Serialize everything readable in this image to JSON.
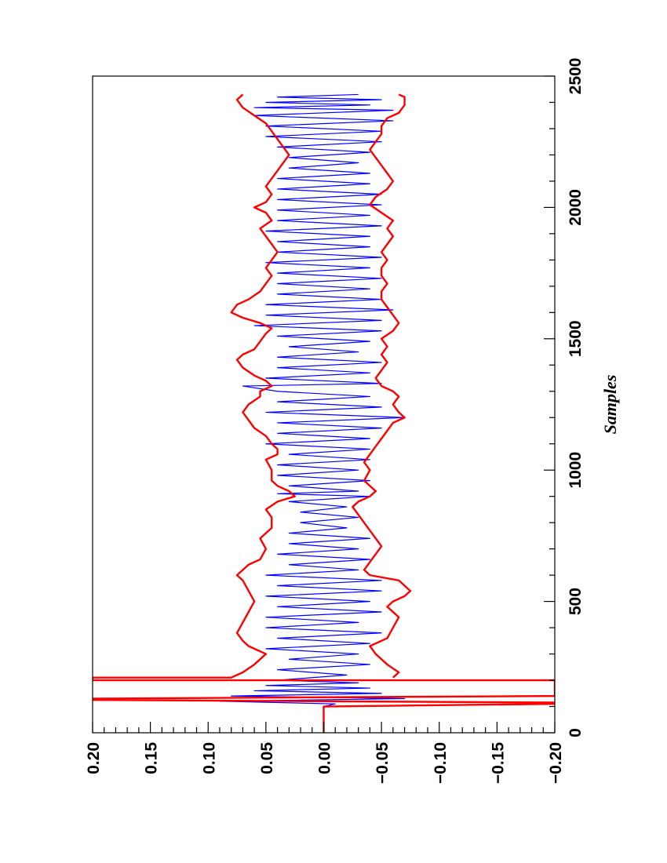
{
  "chart_data": {
    "type": "line",
    "title": "",
    "xlabel": "Samples",
    "ylabel": "",
    "xlim": [
      0,
      2500
    ],
    "ylim": [
      -0.2,
      0.2
    ],
    "x_ticks": [
      0,
      500,
      1000,
      1500,
      2000,
      2500
    ],
    "y_ticks": [
      -0.2,
      -0.15,
      -0.1,
      -0.05,
      0.0,
      0.05,
      0.1,
      0.15,
      0.2
    ],
    "x_tick_labels": [
      "0",
      "500",
      "1000",
      "1500",
      "2000",
      "2500"
    ],
    "y_tick_labels": [
      "−0.20",
      "−0.15",
      "−0.10",
      "−0.05",
      "0.00",
      "0.05",
      "0.10",
      "0.15",
      "0.20"
    ],
    "orientation": "rotated 90° counter-clockwise",
    "grid": false,
    "legend": "none",
    "series": [
      {
        "role": "signal",
        "color": "#0000ff",
        "description_values": "noisy signal, amplitude about ±0.04 to ±0.06",
        "samples": [
          [
            0,
            0
          ],
          [
            100,
            0
          ],
          [
            110,
            -0.01
          ],
          [
            120,
            0.09
          ],
          [
            130,
            -0.07
          ],
          [
            140,
            0.08
          ],
          [
            150,
            -0.05
          ],
          [
            160,
            0.06
          ],
          [
            170,
            -0.04
          ],
          [
            180,
            0.05
          ],
          [
            190,
            -0.03
          ],
          [
            200,
            0.04
          ],
          [
            220,
            -0.02
          ],
          [
            240,
            0.04
          ],
          [
            260,
            -0.04
          ],
          [
            280,
            0.03
          ],
          [
            300,
            -0.03
          ],
          [
            320,
            0.05
          ],
          [
            340,
            -0.04
          ],
          [
            360,
            0.04
          ],
          [
            380,
            -0.05
          ],
          [
            400,
            0.05
          ],
          [
            420,
            -0.03
          ],
          [
            440,
            0.05
          ],
          [
            460,
            -0.05
          ],
          [
            480,
            0.04
          ],
          [
            500,
            -0.04
          ],
          [
            520,
            0.05
          ],
          [
            540,
            -0.05
          ],
          [
            560,
            0.04
          ],
          [
            580,
            -0.05
          ],
          [
            600,
            0.05
          ],
          [
            620,
            -0.03
          ],
          [
            640,
            0.03
          ],
          [
            660,
            -0.04
          ],
          [
            680,
            0.04
          ],
          [
            700,
            -0.03
          ],
          [
            720,
            0.03
          ],
          [
            740,
            -0.04
          ],
          [
            760,
            0.03
          ],
          [
            780,
            -0.02
          ],
          [
            800,
            0.02
          ],
          [
            820,
            -0.03
          ],
          [
            840,
            0.02
          ],
          [
            860,
            -0.02
          ],
          [
            880,
            0.03
          ],
          [
            900,
            -0.04
          ],
          [
            910,
            0.04
          ],
          [
            920,
            -0.03
          ],
          [
            940,
            0.03
          ],
          [
            960,
            -0.04
          ],
          [
            980,
            0.04
          ],
          [
            1000,
            -0.03
          ],
          [
            1020,
            0.04
          ],
          [
            1040,
            -0.04
          ],
          [
            1060,
            0.03
          ],
          [
            1080,
            -0.04
          ],
          [
            1100,
            0.05
          ],
          [
            1120,
            -0.04
          ],
          [
            1140,
            0.04
          ],
          [
            1160,
            -0.05
          ],
          [
            1180,
            0.04
          ],
          [
            1200,
            -0.07
          ],
          [
            1220,
            0.05
          ],
          [
            1240,
            -0.05
          ],
          [
            1260,
            0.04
          ],
          [
            1280,
            -0.04
          ],
          [
            1300,
            0.04
          ],
          [
            1320,
            0.07
          ],
          [
            1330,
            -0.05
          ],
          [
            1350,
            0.05
          ],
          [
            1370,
            -0.04
          ],
          [
            1390,
            0.04
          ],
          [
            1410,
            -0.05
          ],
          [
            1430,
            0.04
          ],
          [
            1450,
            -0.03
          ],
          [
            1470,
            0.03
          ],
          [
            1490,
            -0.04
          ],
          [
            1510,
            0.04
          ],
          [
            1530,
            -0.05
          ],
          [
            1550,
            0.06
          ],
          [
            1570,
            -0.05
          ],
          [
            1590,
            0.05
          ],
          [
            1610,
            -0.06
          ],
          [
            1630,
            0.05
          ],
          [
            1650,
            -0.05
          ],
          [
            1670,
            0.04
          ],
          [
            1690,
            -0.04
          ],
          [
            1710,
            0.04
          ],
          [
            1730,
            -0.05
          ],
          [
            1750,
            0.04
          ],
          [
            1770,
            -0.04
          ],
          [
            1790,
            0.05
          ],
          [
            1810,
            -0.05
          ],
          [
            1830,
            0.04
          ],
          [
            1850,
            -0.04
          ],
          [
            1870,
            0.04
          ],
          [
            1890,
            -0.04
          ],
          [
            1910,
            0.05
          ],
          [
            1930,
            -0.05
          ],
          [
            1950,
            0.04
          ],
          [
            1970,
            -0.04
          ],
          [
            1990,
            0.04
          ],
          [
            2010,
            -0.05
          ],
          [
            2030,
            0.04
          ],
          [
            2050,
            -0.05
          ],
          [
            2070,
            0.04
          ],
          [
            2090,
            -0.04
          ],
          [
            2110,
            0.04
          ],
          [
            2130,
            -0.04
          ],
          [
            2150,
            0.03
          ],
          [
            2170,
            -0.03
          ],
          [
            2190,
            0.03
          ],
          [
            2210,
            -0.04
          ],
          [
            2230,
            0.04
          ],
          [
            2250,
            -0.05
          ],
          [
            2270,
            0.05
          ],
          [
            2290,
            -0.05
          ],
          [
            2310,
            0.05
          ],
          [
            2330,
            -0.06
          ],
          [
            2350,
            0.06
          ],
          [
            2370,
            -0.06
          ],
          [
            2380,
            0.06
          ],
          [
            2390,
            -0.04
          ],
          [
            2400,
            0.05
          ],
          [
            2410,
            -0.05
          ],
          [
            2420,
            0.04
          ],
          [
            2430,
            -0.03
          ]
        ]
      },
      {
        "role": "upper envelope",
        "color": "#ff0000",
        "description_values": "upper bound, roughly 0.03 to 0.08",
        "samples": [
          [
            0,
            0
          ],
          [
            100,
            0
          ],
          [
            110,
            -0.2
          ],
          [
            115,
            -0.2
          ],
          [
            125,
            0.2
          ],
          [
            130,
            0.2
          ],
          [
            140,
            -0.2
          ],
          [
            200,
            -0.2
          ],
          [
            200,
            0.2
          ],
          [
            210,
            0.2
          ],
          [
            210,
            0.08
          ],
          [
            230,
            0.07
          ],
          [
            260,
            0.06
          ],
          [
            300,
            0.05
          ],
          [
            330,
            0.065
          ],
          [
            350,
            0.07
          ],
          [
            380,
            0.075
          ],
          [
            420,
            0.07
          ],
          [
            460,
            0.065
          ],
          [
            500,
            0.06
          ],
          [
            540,
            0.065
          ],
          [
            580,
            0.07
          ],
          [
            600,
            0.075
          ],
          [
            620,
            0.07
          ],
          [
            640,
            0.065
          ],
          [
            660,
            0.055
          ],
          [
            700,
            0.05
          ],
          [
            740,
            0.055
          ],
          [
            780,
            0.045
          ],
          [
            820,
            0.045
          ],
          [
            850,
            0.05
          ],
          [
            880,
            0.04
          ],
          [
            900,
            0.025
          ],
          [
            920,
            0.03
          ],
          [
            940,
            0.04
          ],
          [
            960,
            0.045
          ],
          [
            1000,
            0.045
          ],
          [
            1040,
            0.05
          ],
          [
            1060,
            0.04
          ],
          [
            1080,
            0.04
          ],
          [
            1100,
            0.045
          ],
          [
            1130,
            0.05
          ],
          [
            1160,
            0.06
          ],
          [
            1190,
            0.065
          ],
          [
            1220,
            0.07
          ],
          [
            1250,
            0.065
          ],
          [
            1280,
            0.055
          ],
          [
            1300,
            0.055
          ],
          [
            1320,
            0.045
          ],
          [
            1340,
            0.05
          ],
          [
            1360,
            0.06
          ],
          [
            1390,
            0.07
          ],
          [
            1420,
            0.075
          ],
          [
            1440,
            0.07
          ],
          [
            1460,
            0.06
          ],
          [
            1490,
            0.055
          ],
          [
            1520,
            0.05
          ],
          [
            1540,
            0.045
          ],
          [
            1560,
            0.055
          ],
          [
            1580,
            0.07
          ],
          [
            1600,
            0.08
          ],
          [
            1630,
            0.075
          ],
          [
            1650,
            0.065
          ],
          [
            1680,
            0.055
          ],
          [
            1710,
            0.05
          ],
          [
            1740,
            0.045
          ],
          [
            1770,
            0.05
          ],
          [
            1800,
            0.045
          ],
          [
            1830,
            0.04
          ],
          [
            1860,
            0.045
          ],
          [
            1890,
            0.05
          ],
          [
            1920,
            0.055
          ],
          [
            1950,
            0.045
          ],
          [
            1980,
            0.05
          ],
          [
            2000,
            0.06
          ],
          [
            2020,
            0.05
          ],
          [
            2050,
            0.045
          ],
          [
            2080,
            0.05
          ],
          [
            2110,
            0.045
          ],
          [
            2140,
            0.04
          ],
          [
            2170,
            0.035
          ],
          [
            2200,
            0.03
          ],
          [
            2230,
            0.035
          ],
          [
            2260,
            0.04
          ],
          [
            2290,
            0.045
          ],
          [
            2320,
            0.05
          ],
          [
            2350,
            0.06
          ],
          [
            2380,
            0.07
          ],
          [
            2410,
            0.075
          ],
          [
            2430,
            0.07
          ]
        ]
      },
      {
        "role": "lower envelope",
        "color": "#ff0000",
        "description_values": "lower bound, roughly -0.02 to -0.075",
        "samples": [
          [
            210,
            -0.06
          ],
          [
            230,
            -0.065
          ],
          [
            260,
            -0.055
          ],
          [
            300,
            -0.045
          ],
          [
            330,
            -0.04
          ],
          [
            360,
            -0.055
          ],
          [
            400,
            -0.06
          ],
          [
            440,
            -0.065
          ],
          [
            480,
            -0.055
          ],
          [
            500,
            -0.06
          ],
          [
            520,
            -0.07
          ],
          [
            540,
            -0.075
          ],
          [
            560,
            -0.07
          ],
          [
            580,
            -0.065
          ],
          [
            600,
            -0.04
          ],
          [
            620,
            -0.035
          ],
          [
            650,
            -0.04
          ],
          [
            680,
            -0.045
          ],
          [
            710,
            -0.05
          ],
          [
            740,
            -0.045
          ],
          [
            770,
            -0.04
          ],
          [
            800,
            -0.035
          ],
          [
            830,
            -0.03
          ],
          [
            860,
            -0.025
          ],
          [
            880,
            -0.03
          ],
          [
            900,
            -0.04
          ],
          [
            920,
            -0.045
          ],
          [
            960,
            -0.035
          ],
          [
            1000,
            -0.04
          ],
          [
            1030,
            -0.035
          ],
          [
            1060,
            -0.04
          ],
          [
            1090,
            -0.045
          ],
          [
            1120,
            -0.05
          ],
          [
            1150,
            -0.055
          ],
          [
            1180,
            -0.06
          ],
          [
            1200,
            -0.07
          ],
          [
            1220,
            -0.065
          ],
          [
            1250,
            -0.06
          ],
          [
            1280,
            -0.065
          ],
          [
            1300,
            -0.06
          ],
          [
            1320,
            -0.05
          ],
          [
            1350,
            -0.045
          ],
          [
            1380,
            -0.05
          ],
          [
            1410,
            -0.055
          ],
          [
            1440,
            -0.05
          ],
          [
            1470,
            -0.055
          ],
          [
            1500,
            -0.05
          ],
          [
            1530,
            -0.06
          ],
          [
            1560,
            -0.065
          ],
          [
            1590,
            -0.06
          ],
          [
            1620,
            -0.055
          ],
          [
            1650,
            -0.05
          ],
          [
            1680,
            -0.05
          ],
          [
            1710,
            -0.055
          ],
          [
            1740,
            -0.05
          ],
          [
            1770,
            -0.05
          ],
          [
            1800,
            -0.055
          ],
          [
            1830,
            -0.05
          ],
          [
            1860,
            -0.055
          ],
          [
            1890,
            -0.06
          ],
          [
            1920,
            -0.055
          ],
          [
            1950,
            -0.06
          ],
          [
            1980,
            -0.05
          ],
          [
            2010,
            -0.04
          ],
          [
            2040,
            -0.045
          ],
          [
            2070,
            -0.055
          ],
          [
            2100,
            -0.06
          ],
          [
            2130,
            -0.055
          ],
          [
            2160,
            -0.05
          ],
          [
            2190,
            -0.045
          ],
          [
            2220,
            -0.04
          ],
          [
            2250,
            -0.045
          ],
          [
            2280,
            -0.05
          ],
          [
            2310,
            -0.05
          ],
          [
            2340,
            -0.055
          ],
          [
            2360,
            -0.065
          ],
          [
            2390,
            -0.07
          ],
          [
            2420,
            -0.07
          ],
          [
            2430,
            -0.065
          ]
        ]
      }
    ]
  }
}
